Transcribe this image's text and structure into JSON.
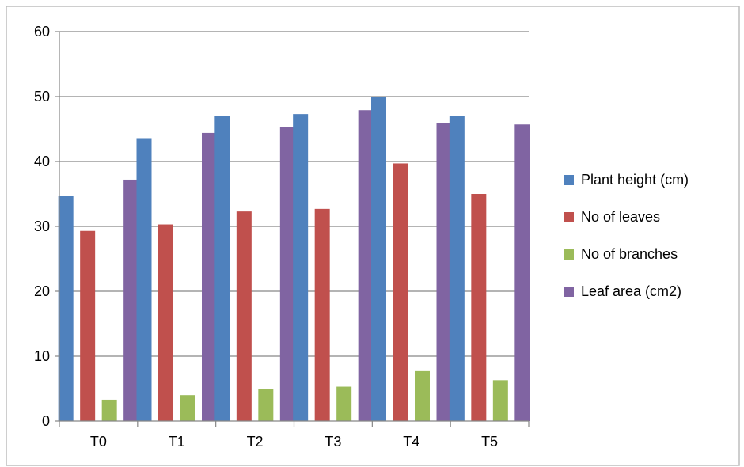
{
  "chart_data": {
    "type": "bar",
    "categories": [
      "T0",
      "T1",
      "T2",
      "T3",
      "T4",
      "T5"
    ],
    "series": [
      {
        "name": "Plant height  (cm)",
        "color": "#4f81bd",
        "values": [
          34.7,
          43.6,
          47.0,
          47.3,
          50.0,
          47.0
        ]
      },
      {
        "name": "No of leaves",
        "color": "#c0504d",
        "values": [
          29.3,
          30.3,
          32.3,
          32.7,
          39.7,
          35.0
        ]
      },
      {
        "name": "No of branches",
        "color": "#9bbb59",
        "values": [
          3.3,
          4.0,
          5.0,
          5.3,
          7.7,
          6.3
        ]
      },
      {
        "name": "Leaf area (cm2)",
        "color": "#8064a2",
        "values": [
          37.2,
          44.4,
          45.3,
          47.9,
          45.9,
          45.7
        ]
      }
    ],
    "ylim": [
      0,
      60
    ],
    "yticks": [
      0,
      10,
      20,
      30,
      40,
      50,
      60
    ],
    "title": "",
    "xlabel": "",
    "ylabel": "",
    "grid": true,
    "legend_position": "right"
  }
}
